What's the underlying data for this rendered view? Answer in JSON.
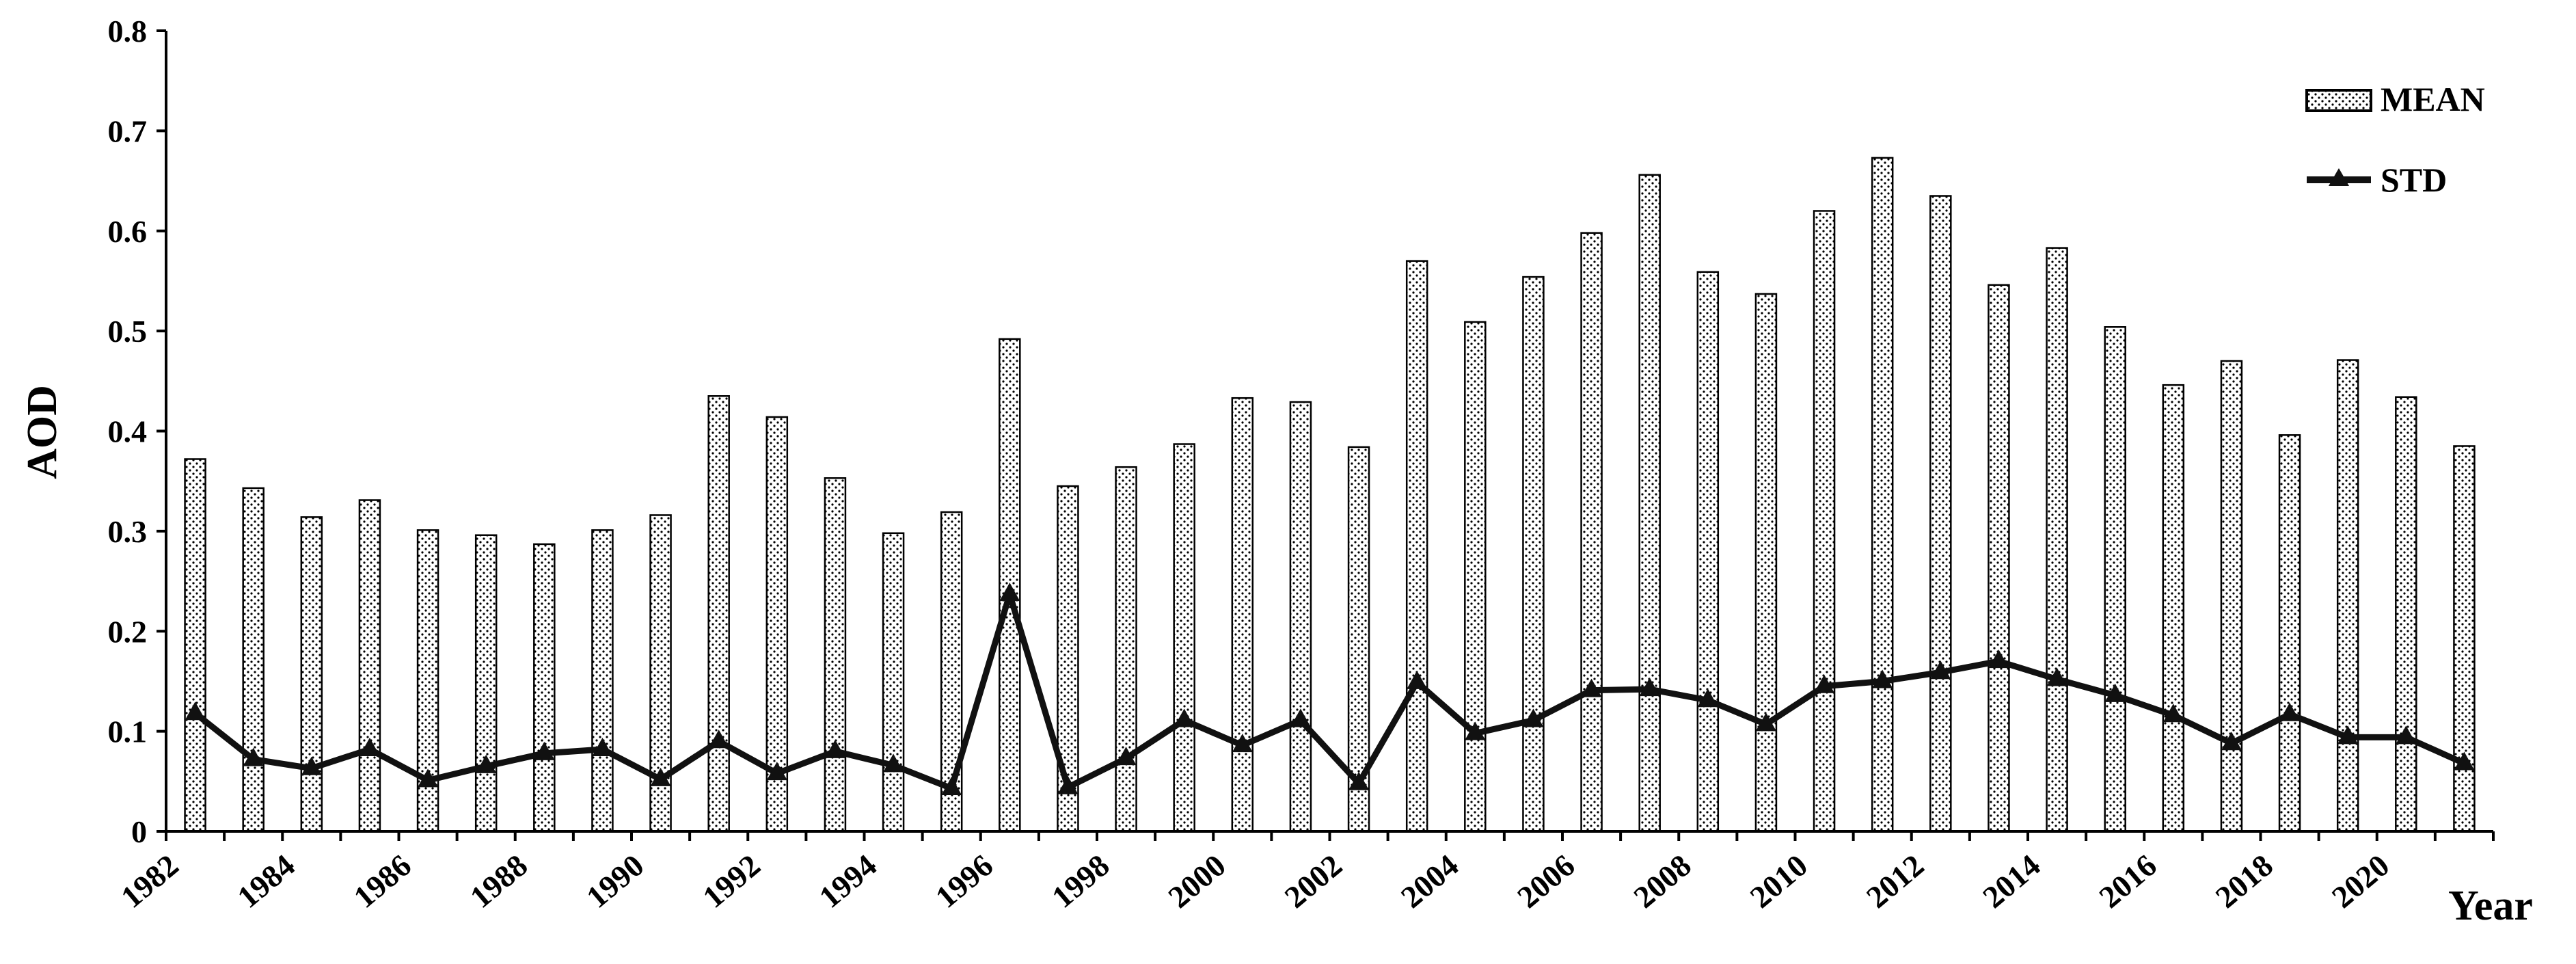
{
  "chart_data": {
    "type": "bar",
    "title": "",
    "xlabel": "Year",
    "ylabel": "AOD",
    "ylim": [
      0,
      0.8
    ],
    "yticks": [
      "0",
      "0.1",
      "0.2",
      "0.3",
      "0.4",
      "0.5",
      "0.6",
      "0.7",
      "0.8"
    ],
    "x_tick_labels": [
      "1982",
      "1984",
      "1986",
      "1988",
      "1990",
      "1992",
      "1994",
      "1996",
      "1998",
      "2000",
      "2002",
      "2004",
      "2006",
      "2008",
      "2010",
      "2012",
      "2014",
      "2016",
      "2018",
      "2020"
    ],
    "categories": [
      1982,
      1983,
      1984,
      1985,
      1986,
      1987,
      1988,
      1989,
      1990,
      1991,
      1992,
      1993,
      1994,
      1995,
      1996,
      1997,
      1998,
      1999,
      2000,
      2001,
      2002,
      2003,
      2004,
      2005,
      2006,
      2007,
      2008,
      2009,
      2010,
      2011,
      2012,
      2013,
      2014,
      2015,
      2016,
      2017,
      2018,
      2019,
      2020,
      2021
    ],
    "legend_position": "top-right",
    "grid": false,
    "series": [
      {
        "name": "MEAN",
        "type": "bar",
        "pattern": "dotted",
        "values": [
          0.372,
          0.343,
          0.314,
          0.331,
          0.301,
          0.296,
          0.287,
          0.301,
          0.316,
          0.435,
          0.414,
          0.353,
          0.298,
          0.319,
          0.492,
          0.345,
          0.364,
          0.387,
          0.433,
          0.429,
          0.384,
          0.57,
          0.509,
          0.554,
          0.598,
          0.656,
          0.559,
          0.537,
          0.62,
          0.673,
          0.635,
          0.546,
          0.583,
          0.504,
          0.446,
          0.47,
          0.396,
          0.471,
          0.434,
          0.385
        ]
      },
      {
        "name": "STD",
        "type": "line",
        "marker": "triangle",
        "color": "#111111",
        "values": [
          0.118,
          0.072,
          0.063,
          0.082,
          0.051,
          0.065,
          0.078,
          0.082,
          0.052,
          0.09,
          0.058,
          0.08,
          0.066,
          0.043,
          0.237,
          0.044,
          0.073,
          0.111,
          0.086,
          0.111,
          0.048,
          0.149,
          0.098,
          0.111,
          0.141,
          0.142,
          0.131,
          0.107,
          0.145,
          0.15,
          0.159,
          0.17,
          0.152,
          0.136,
          0.116,
          0.088,
          0.117,
          0.094,
          0.094,
          0.068
        ]
      }
    ]
  }
}
